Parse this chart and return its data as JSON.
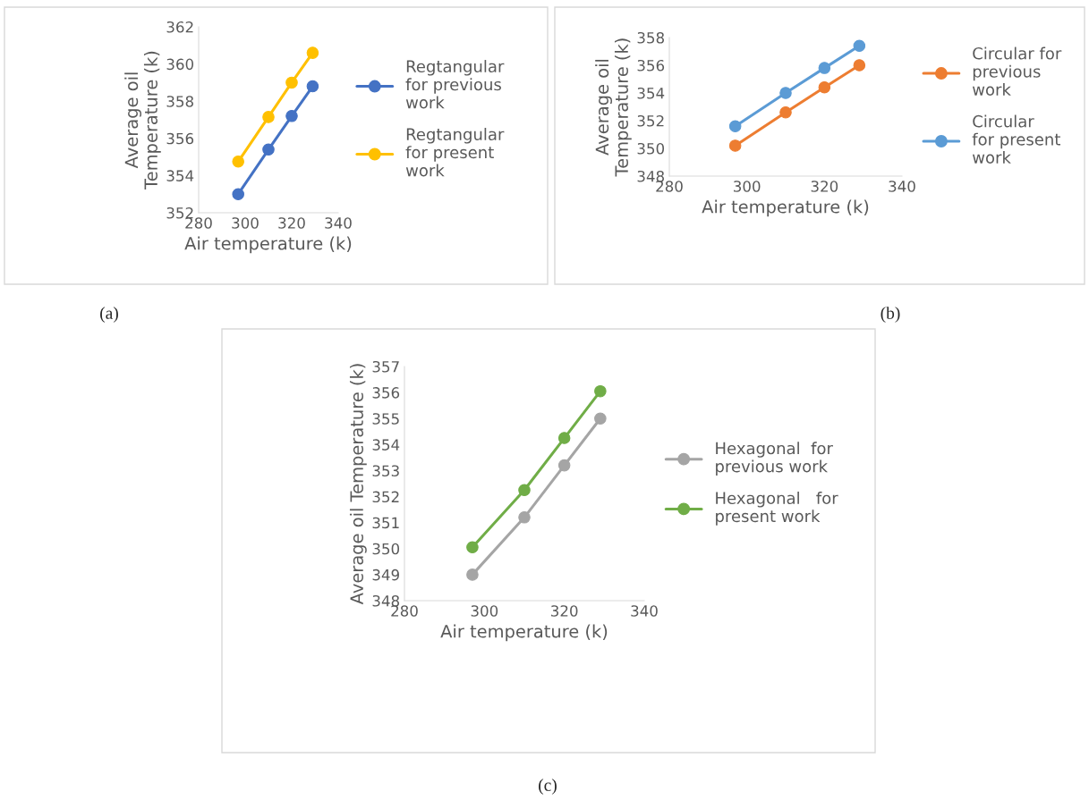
{
  "chart_data": [
    {
      "type": "line",
      "xlabel": "Air temperature (k)",
      "ylabel": "Average oil\nTemperature (k)",
      "x": [
        297,
        310,
        320,
        329
      ],
      "xlim": [
        280,
        340
      ],
      "xticks": [
        280,
        300,
        320,
        340
      ],
      "ylim": [
        352,
        362
      ],
      "yticks": [
        352,
        354,
        356,
        358,
        360,
        362
      ],
      "marker": "circle",
      "line_style": "solid",
      "legend": "right",
      "annotations": [
        "(a)"
      ],
      "series": [
        {
          "name": "Regtangular\nfor previous\nwork",
          "color": "#4472c4",
          "values": [
            353.0,
            355.4,
            357.2,
            358.8
          ]
        },
        {
          "name": "Regtangular\nfor present\nwork",
          "color": "#ffc000",
          "values": [
            354.75,
            357.15,
            359.0,
            360.6
          ]
        }
      ]
    },
    {
      "type": "line",
      "xlabel": "Air temperature (k)",
      "ylabel": "Average oil\nTemperature (k)",
      "x": [
        297,
        310,
        320,
        329
      ],
      "xlim": [
        280,
        340
      ],
      "xticks": [
        280,
        300,
        320,
        340
      ],
      "ylim": [
        348,
        358
      ],
      "yticks": [
        348,
        350,
        352,
        354,
        356,
        358
      ],
      "marker": "circle",
      "line_style": "solid",
      "legend": "right",
      "annotations": [
        "(b)"
      ],
      "series": [
        {
          "name": "Circular for\nprevious\nwork",
          "color": "#ed7d31",
          "values": [
            350.2,
            352.6,
            354.4,
            356.0
          ]
        },
        {
          "name": "Circular\nfor present\nwork",
          "color": "#5b9bd5",
          "values": [
            351.6,
            354.0,
            355.8,
            357.4
          ]
        }
      ]
    },
    {
      "type": "line",
      "xlabel": "Air temperature (k)",
      "ylabel": "Average oil Temperature (k)",
      "x": [
        297,
        310,
        320,
        329
      ],
      "xlim": [
        280,
        340
      ],
      "xticks": [
        280,
        300,
        320,
        340
      ],
      "ylim": [
        348,
        357
      ],
      "yticks": [
        348,
        349,
        350,
        351,
        352,
        353,
        354,
        355,
        356,
        357
      ],
      "marker": "circle",
      "line_style": "solid",
      "legend": "right",
      "annotations": [
        "(c)"
      ],
      "series": [
        {
          "name": "Hexagonal  for\nprevious work",
          "color": "#a5a5a5",
          "values": [
            349.0,
            351.2,
            353.2,
            355.0
          ]
        },
        {
          "name": "Hexagonal   for\npresent work",
          "color": "#70ad47",
          "values": [
            350.05,
            352.25,
            354.25,
            356.05
          ]
        }
      ]
    }
  ]
}
